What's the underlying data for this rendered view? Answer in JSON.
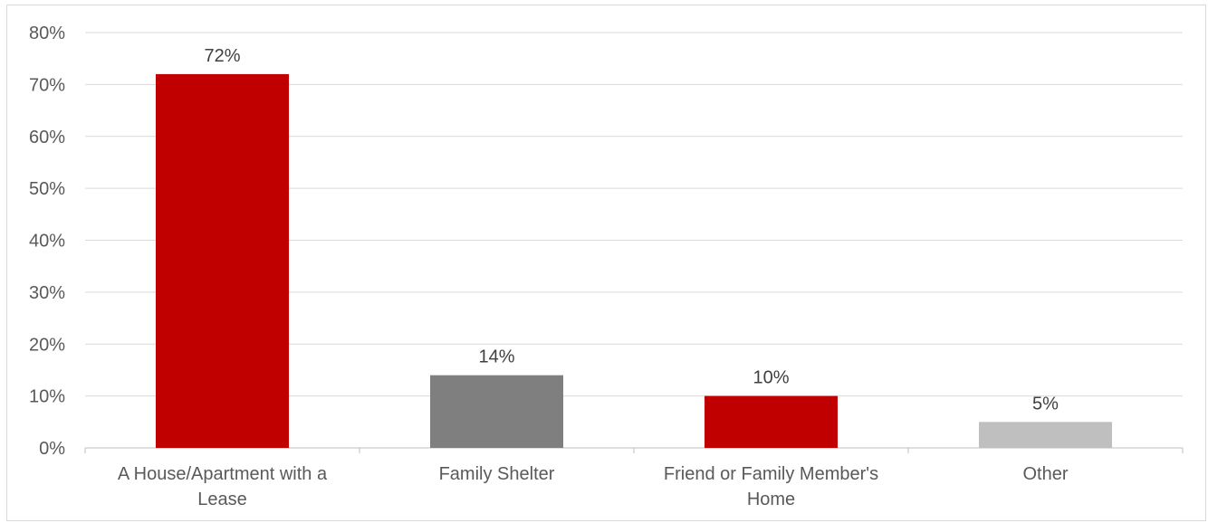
{
  "chart_data": {
    "type": "bar",
    "categories": [
      [
        "A House/Apartment with a",
        "Lease"
      ],
      [
        "Family Shelter"
      ],
      [
        "Friend or Family Member's",
        "Home"
      ],
      [
        "Other"
      ]
    ],
    "values": [
      72,
      14,
      10,
      5
    ],
    "data_labels": [
      "72%",
      "14%",
      "10%",
      "5%"
    ],
    "bar_colors": [
      "#c00000",
      "#7f7f7f",
      "#c00000",
      "#bfbfbf"
    ],
    "ylim": [
      0,
      80
    ],
    "yticks": [
      0,
      10,
      20,
      30,
      40,
      50,
      60,
      70,
      80
    ],
    "ytick_labels": [
      "0%",
      "10%",
      "20%",
      "30%",
      "40%",
      "50%",
      "60%",
      "70%",
      "80%"
    ],
    "grid": true,
    "legend": "none",
    "title": "",
    "xlabel": "",
    "ylabel": ""
  }
}
